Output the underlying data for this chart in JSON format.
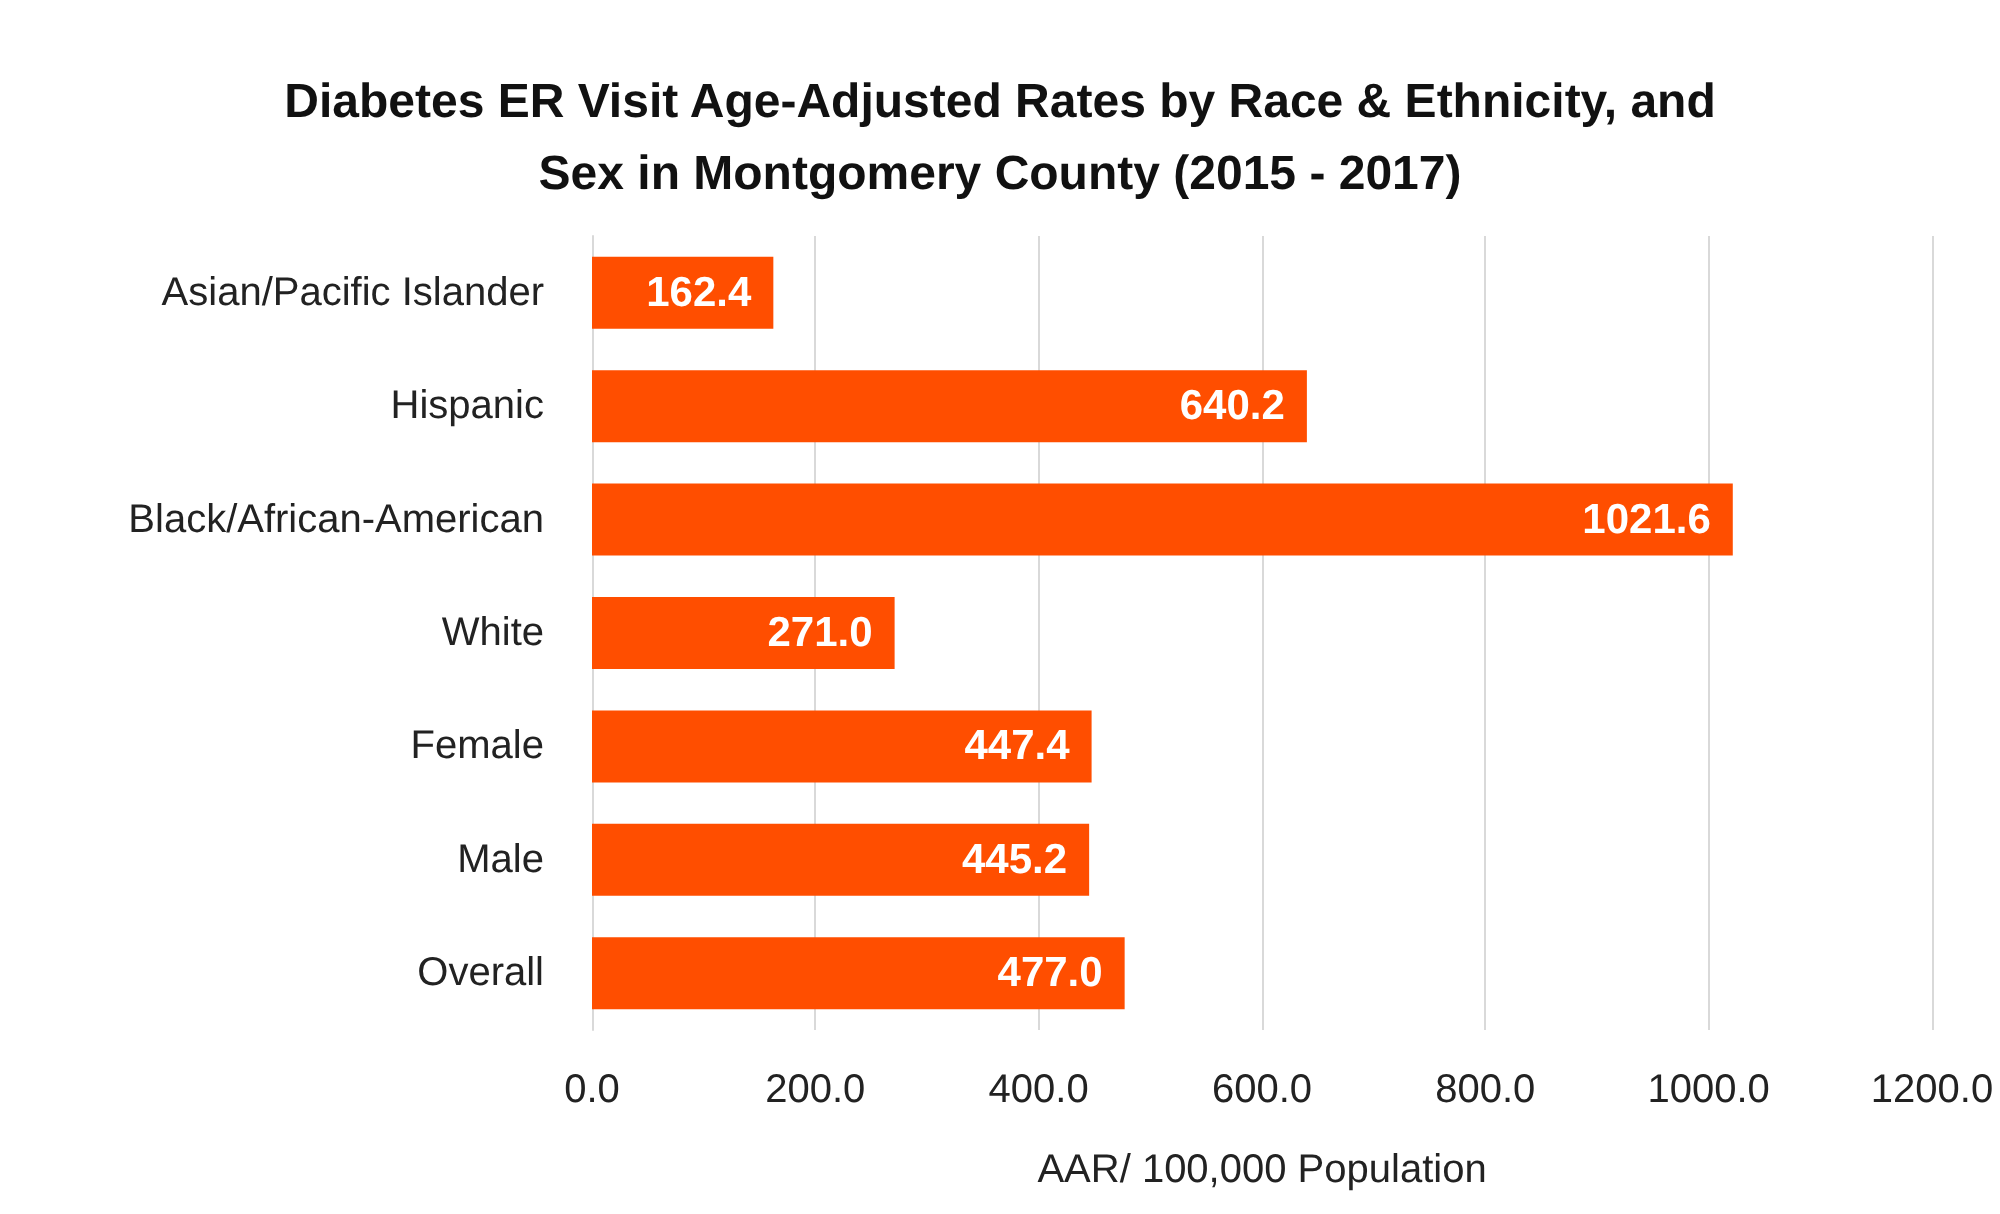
{
  "chart_data": {
    "type": "bar",
    "orientation": "horizontal",
    "title": "Diabetes ER Visit Age-Adjusted Rates by Race & Ethnicity, and\nSex in Montgomery County (2015 - 2017)",
    "xlabel": "AAR/ 100,000 Population",
    "categories": [
      "Asian/Pacific Islander",
      "Hispanic",
      "Black/African-American",
      "White",
      "Female",
      "Male",
      "Overall"
    ],
    "values": [
      162.4,
      640.2,
      1021.6,
      271.0,
      447.4,
      445.2,
      477.0
    ],
    "value_labels": [
      "162.4",
      "640.2",
      "1021.6",
      "271.0",
      "447.4",
      "445.2",
      "477.0"
    ],
    "color": "#ff4e00",
    "xlim": [
      0,
      1200
    ],
    "xticks": [
      {
        "value": 0,
        "label": "0.0"
      },
      {
        "value": 200,
        "label": "200.0"
      },
      {
        "value": 400,
        "label": "400.0"
      },
      {
        "value": 600,
        "label": "600.0"
      },
      {
        "value": 800,
        "label": "800.0"
      },
      {
        "value": 1000,
        "label": "1000.0"
      },
      {
        "value": 1200,
        "label": "1200.0"
      }
    ],
    "grid": "x"
  }
}
